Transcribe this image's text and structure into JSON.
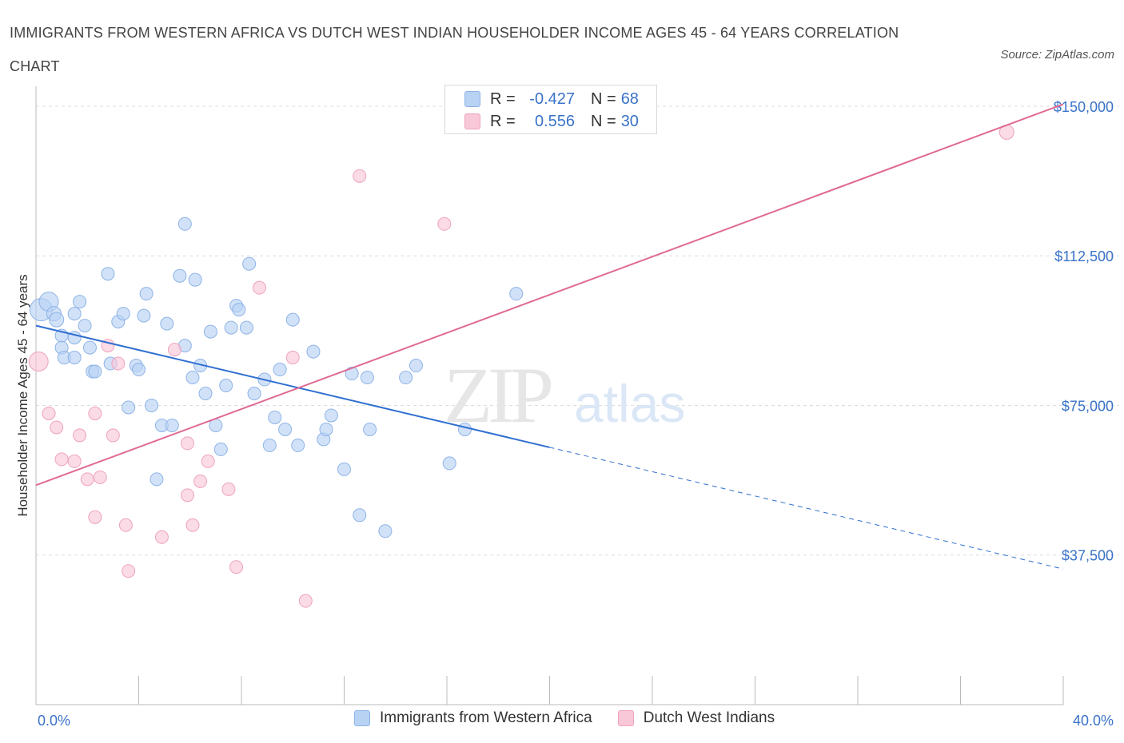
{
  "title": "IMMIGRANTS FROM WESTERN AFRICA VS DUTCH WEST INDIAN HOUSEHOLDER INCOME AGES 45 - 64 YEARS CORRELATION CHART",
  "source": "Source: ZipAtlas.com",
  "watermark": {
    "zip": "ZIP",
    "atlas": "atlas"
  },
  "legend": {
    "rows": [
      {
        "r_label": "R =",
        "r_value": "-0.427",
        "n_label": "N =",
        "n_value": "68"
      },
      {
        "r_label": "R =",
        "r_value": "0.556",
        "n_label": "N =",
        "n_value": "30"
      }
    ]
  },
  "bottom_legend": [
    "Immigrants from Western Africa",
    "Dutch West Indians"
  ],
  "colors": {
    "blue_fill": "#b8d2f4",
    "blue_stroke": "#8eb3e6",
    "blue_line": "#2f6fd0",
    "pink_fill": "#f8c8d8",
    "pink_stroke": "#eea3bd",
    "pink_line": "#e06a94",
    "tick_label": "#3a73c8",
    "grid": "#dddddd"
  },
  "chart_data": {
    "type": "scatter",
    "ylabel": "Householder Income Ages 45 - 64 years",
    "x_tick_labels": [
      "0.0%",
      "40.0%"
    ],
    "y_tick_labels": [
      "$150,000",
      "$112,500",
      "$75,000",
      "$37,500"
    ],
    "y_ticks": [
      150000,
      112500,
      75000,
      37500
    ],
    "xlim": [
      0,
      40
    ],
    "ylim": [
      0,
      155000
    ],
    "series": [
      {
        "name": "Immigrants from Western Africa",
        "trend": {
          "x0": 0,
          "y0": 95000,
          "x1": 20,
          "y1": 64500,
          "dash_to_x": 40,
          "dash_to_y": 34000
        },
        "points": [
          [
            0.2,
            99000,
            14
          ],
          [
            0.5,
            101000,
            12
          ],
          [
            0.7,
            98000,
            9
          ],
          [
            0.8,
            96500,
            9
          ],
          [
            1,
            92500,
            8
          ],
          [
            1,
            89500,
            8
          ],
          [
            1.1,
            87000,
            8
          ],
          [
            1.5,
            98000,
            8
          ],
          [
            1.5,
            92000,
            8
          ],
          [
            1.5,
            87000,
            8
          ],
          [
            1.7,
            101000,
            8
          ],
          [
            1.9,
            95000,
            8
          ],
          [
            2.1,
            89500,
            8
          ],
          [
            2.2,
            83500,
            8
          ],
          [
            2.3,
            83500,
            8
          ],
          [
            2.8,
            108000,
            8
          ],
          [
            2.9,
            85500,
            8
          ],
          [
            3.2,
            96000,
            8
          ],
          [
            3.4,
            98000,
            8
          ],
          [
            3.6,
            74500,
            8
          ],
          [
            3.9,
            85000,
            8
          ],
          [
            4,
            84000,
            8
          ],
          [
            4.2,
            97500,
            8
          ],
          [
            4.3,
            103000,
            8
          ],
          [
            4.5,
            75000,
            8
          ],
          [
            4.7,
            56500,
            8
          ],
          [
            4.9,
            70000,
            8
          ],
          [
            5.1,
            95500,
            8
          ],
          [
            5.3,
            70000,
            8
          ],
          [
            5.6,
            107500,
            8
          ],
          [
            5.8,
            90000,
            8
          ],
          [
            5.8,
            120500,
            8
          ],
          [
            6.1,
            82000,
            8
          ],
          [
            6.2,
            106500,
            8
          ],
          [
            6.4,
            85000,
            8
          ],
          [
            6.6,
            78000,
            8
          ],
          [
            6.8,
            93500,
            8
          ],
          [
            7,
            70000,
            8
          ],
          [
            7.2,
            64000,
            8
          ],
          [
            7.4,
            80000,
            8
          ],
          [
            7.6,
            94500,
            8
          ],
          [
            7.8,
            100000,
            8
          ],
          [
            7.9,
            99000,
            8
          ],
          [
            8.2,
            94500,
            8
          ],
          [
            8.3,
            110500,
            8
          ],
          [
            8.5,
            78000,
            8
          ],
          [
            8.9,
            81500,
            8
          ],
          [
            9.1,
            65000,
            8
          ],
          [
            9.3,
            72000,
            8
          ],
          [
            9.5,
            84000,
            8
          ],
          [
            9.7,
            69000,
            8
          ],
          [
            10,
            96500,
            8
          ],
          [
            10.2,
            65000,
            8
          ],
          [
            10.8,
            88500,
            8
          ],
          [
            11.2,
            66500,
            8
          ],
          [
            11.3,
            69000,
            8
          ],
          [
            11.5,
            72500,
            8
          ],
          [
            12,
            59000,
            8
          ],
          [
            12.3,
            83000,
            8
          ],
          [
            12.6,
            47500,
            8
          ],
          [
            12.9,
            82000,
            8
          ],
          [
            13,
            69000,
            8
          ],
          [
            13.6,
            43500,
            8
          ],
          [
            14.4,
            82000,
            8
          ],
          [
            14.8,
            85000,
            8
          ],
          [
            16.1,
            60500,
            8
          ],
          [
            16.7,
            69000,
            8
          ],
          [
            18.7,
            103000,
            8
          ]
        ]
      },
      {
        "name": "Dutch West Indians",
        "trend": {
          "x0": 0,
          "y0": 55000,
          "x1": 40,
          "y1": 150500
        },
        "points": [
          [
            0.1,
            86000,
            12
          ],
          [
            0.5,
            73000,
            8
          ],
          [
            0.8,
            69500,
            8
          ],
          [
            1,
            61500,
            8
          ],
          [
            1.5,
            61000,
            8
          ],
          [
            1.7,
            67500,
            8
          ],
          [
            2,
            56500,
            8
          ],
          [
            2.3,
            73000,
            8
          ],
          [
            2.3,
            47000,
            8
          ],
          [
            2.5,
            57000,
            8
          ],
          [
            2.8,
            90000,
            8
          ],
          [
            3,
            67500,
            8
          ],
          [
            3.2,
            85500,
            8
          ],
          [
            3.5,
            45000,
            8
          ],
          [
            3.6,
            33500,
            8
          ],
          [
            4.9,
            42000,
            8
          ],
          [
            5.4,
            89000,
            8
          ],
          [
            5.9,
            65500,
            8
          ],
          [
            5.9,
            52500,
            8
          ],
          [
            6.1,
            45000,
            8
          ],
          [
            6.4,
            56000,
            8
          ],
          [
            6.7,
            61000,
            8
          ],
          [
            7.5,
            54000,
            8
          ],
          [
            7.8,
            34500,
            8
          ],
          [
            8.7,
            104500,
            8
          ],
          [
            10,
            87000,
            8
          ],
          [
            10.5,
            26000,
            8
          ],
          [
            12.6,
            132500,
            8
          ],
          [
            15.9,
            120500,
            8
          ],
          [
            37.8,
            143500,
            9
          ]
        ]
      }
    ]
  }
}
